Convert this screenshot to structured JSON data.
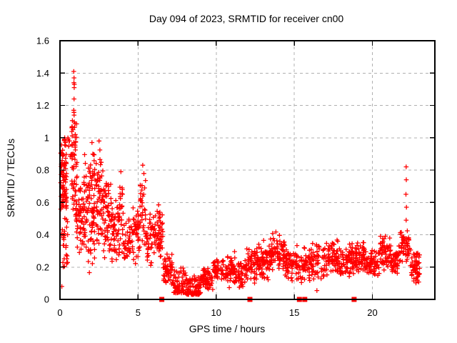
{
  "chart_data": {
    "type": "scatter",
    "title": "Day 094 of 2023, SRMTID for receiver cn00",
    "xlabel": "GPS time / hours",
    "ylabel": "SRMTID / TECUs",
    "xlim": [
      0,
      24
    ],
    "ylim": [
      0,
      1.6
    ],
    "grid": "dashed-gray-at-major-ticks",
    "legend": "none",
    "x_ticks": [
      {
        "v": 0,
        "label": "0"
      },
      {
        "v": 5,
        "label": "5"
      },
      {
        "v": 10,
        "label": "10"
      },
      {
        "v": 15,
        "label": "15"
      },
      {
        "v": 20,
        "label": "20"
      }
    ],
    "y_ticks": [
      {
        "v": 0,
        "label": "0"
      },
      {
        "v": 0.2,
        "label": "0.2"
      },
      {
        "v": 0.4,
        "label": "0.4"
      },
      {
        "v": 0.6,
        "label": "0.6"
      },
      {
        "v": 0.8,
        "label": "0.8"
      },
      {
        "v": 1.0,
        "label": "1"
      },
      {
        "v": 1.2,
        "label": "1.2"
      },
      {
        "v": 1.4,
        "label": "1.4"
      },
      {
        "v": 1.6,
        "label": "1.6"
      }
    ],
    "cluster_format": [
      "x0",
      "x1",
      "y0",
      "y1",
      "count",
      "dist"
    ],
    "series": [
      {
        "name": "srmtid",
        "marker": "plus",
        "color": "#ff0000",
        "seed": 1234,
        "clusters": [
          [
            0.05,
            0.42,
            0.45,
            1.02,
            80,
            "mid"
          ],
          [
            0.08,
            0.5,
            0.18,
            0.48,
            26,
            "u"
          ],
          [
            0.3,
            0.8,
            0.88,
            1.05,
            15,
            "u"
          ],
          [
            0.75,
            1.1,
            0.5,
            1.22,
            55,
            "mid"
          ],
          [
            1.0,
            1.45,
            0.28,
            0.8,
            45,
            "mid"
          ],
          [
            1.45,
            1.8,
            0.3,
            0.95,
            40,
            "mid"
          ],
          [
            1.8,
            2.25,
            0.12,
            0.97,
            70,
            "mid"
          ],
          [
            2.3,
            2.75,
            0.3,
            0.98,
            55,
            "mid"
          ],
          [
            2.75,
            3.3,
            0.15,
            0.8,
            60,
            "mid"
          ],
          [
            3.3,
            3.75,
            0.2,
            0.66,
            42,
            "mid"
          ],
          [
            3.75,
            4.05,
            0.2,
            0.79,
            30,
            "mid"
          ],
          [
            4.05,
            4.65,
            0.17,
            0.52,
            42,
            "mid"
          ],
          [
            4.65,
            5.12,
            0.2,
            0.62,
            38,
            "mid"
          ],
          [
            5.12,
            5.48,
            0.25,
            0.83,
            32,
            "mid"
          ],
          [
            5.48,
            6.2,
            0.18,
            0.55,
            52,
            "mid"
          ],
          [
            6.2,
            6.58,
            0.18,
            0.62,
            42,
            "mid"
          ],
          [
            6.58,
            7.2,
            0.08,
            0.3,
            52,
            "mid"
          ],
          [
            7.2,
            8.05,
            0.04,
            0.2,
            70,
            "low"
          ],
          [
            8.05,
            9.0,
            0.03,
            0.15,
            85,
            "low"
          ],
          [
            9.0,
            9.8,
            0.05,
            0.21,
            65,
            "mid"
          ],
          [
            9.8,
            10.15,
            0.1,
            0.27,
            30,
            "mid"
          ],
          [
            10.3,
            11.25,
            0.06,
            0.3,
            70,
            "mid"
          ],
          [
            11.25,
            11.95,
            0.05,
            0.26,
            50,
            "mid"
          ],
          [
            11.95,
            12.65,
            0.1,
            0.34,
            58,
            "mid"
          ],
          [
            12.65,
            13.45,
            0.1,
            0.38,
            66,
            "mid"
          ],
          [
            13.45,
            14.4,
            0.15,
            0.43,
            80,
            "mid"
          ],
          [
            14.4,
            15.15,
            0.1,
            0.33,
            60,
            "mid"
          ],
          [
            15.15,
            16.0,
            0.08,
            0.35,
            58,
            "mid"
          ],
          [
            16.0,
            16.95,
            0.1,
            0.38,
            58,
            "mid"
          ],
          [
            16.95,
            17.9,
            0.13,
            0.38,
            70,
            "mid"
          ],
          [
            17.9,
            18.72,
            0.12,
            0.36,
            66,
            "mid"
          ],
          [
            18.72,
            19.55,
            0.14,
            0.37,
            72,
            "mid"
          ],
          [
            19.55,
            20.45,
            0.13,
            0.31,
            66,
            "mid"
          ],
          [
            20.45,
            21.2,
            0.16,
            0.42,
            62,
            "mid"
          ],
          [
            21.2,
            21.65,
            0.15,
            0.33,
            42,
            "mid"
          ],
          [
            21.65,
            22.4,
            0.2,
            0.47,
            58,
            "mid"
          ],
          [
            22.4,
            23.05,
            0.08,
            0.32,
            60,
            "mid"
          ]
        ],
        "highlight_points": [
          [
            0.88,
            1.41
          ],
          [
            0.9,
            1.37
          ],
          [
            0.89,
            1.34
          ],
          [
            0.92,
            1.33
          ],
          [
            0.91,
            1.31
          ],
          [
            0.9,
            1.24
          ],
          [
            0.88,
            1.17
          ],
          [
            0.3,
            1.0
          ],
          [
            0.35,
            0.97
          ],
          [
            2.05,
            0.97
          ],
          [
            2.5,
            0.98
          ],
          [
            5.3,
            0.83
          ],
          [
            3.9,
            0.79
          ],
          [
            0.12,
            0.08
          ],
          [
            16.45,
            0.055
          ],
          [
            22.16,
            0.82
          ],
          [
            22.17,
            0.74
          ],
          [
            22.15,
            0.65
          ],
          [
            22.18,
            0.57
          ],
          [
            22.16,
            0.49
          ]
        ]
      },
      {
        "name": "baseline_flags",
        "marker": "filled-square",
        "color": "#ff0000",
        "points": [
          [
            6.52,
            0
          ],
          [
            12.16,
            0
          ],
          [
            15.33,
            0
          ],
          [
            15.67,
            0
          ],
          [
            18.83,
            0
          ]
        ]
      }
    ]
  },
  "colors": {
    "marker": "#ff0000",
    "grid": "#b0b0b0",
    "border": "#000000",
    "text": "#000000",
    "background": "#ffffff"
  }
}
